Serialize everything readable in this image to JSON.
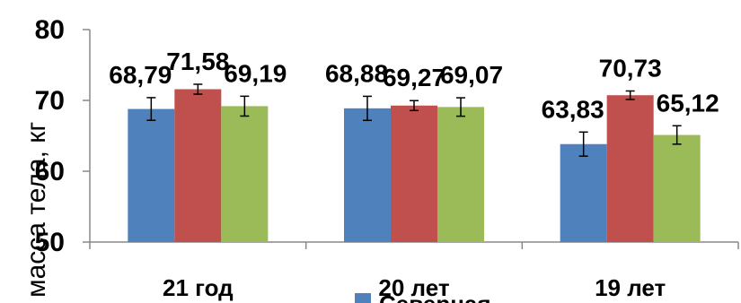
{
  "chart_data": {
    "type": "bar",
    "title": "",
    "xlabel": "",
    "ylabel": "масса тела, кг",
    "ylim": [
      50,
      80
    ],
    "yticks": [
      50,
      60,
      70,
      80
    ],
    "categories": [
      "21 год",
      "20 лет",
      "19 лет"
    ],
    "series": [
      {
        "name": "Северная",
        "color": "#4F81BD",
        "values": [
          68.79,
          68.88,
          63.83
        ],
        "errors": [
          1.6,
          1.7,
          1.7
        ]
      },
      {
        "color": "#C0504D",
        "values": [
          71.58,
          69.27,
          70.73
        ],
        "errors": [
          0.7,
          0.7,
          0.6
        ]
      },
      {
        "color": "#9BBB59",
        "values": [
          69.19,
          69.07,
          65.12
        ],
        "errors": [
          1.4,
          1.3,
          1.3
        ]
      }
    ],
    "data_labels": [
      [
        "68,79",
        "68,88",
        "63,83"
      ],
      [
        "71,58",
        "69,27",
        "70,73"
      ],
      [
        "69,19",
        "69,07",
        "65,12"
      ]
    ],
    "tick_labels": [
      "50",
      "60",
      "70",
      "80"
    ],
    "grid": false,
    "legend_position": "bottom"
  }
}
